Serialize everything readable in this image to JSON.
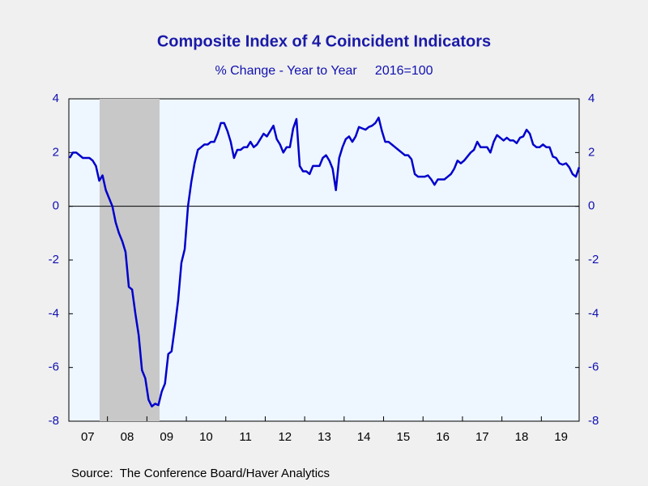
{
  "chart_data": {
    "type": "line",
    "title": "Composite Index of 4 Coincident Indicators",
    "subtitle": "% Change - Year to Year     2016=100",
    "source": "Source:  The Conference Board/Haver Analytics",
    "categories": [
      null,
      null,
      null,
      null,
      null,
      "07",
      null,
      null,
      null,
      null,
      null,
      null,
      null,
      null,
      null,
      null,
      null,
      "08",
      null,
      null,
      null,
      null,
      null,
      null,
      null,
      null,
      null,
      null,
      null,
      "09",
      null,
      null,
      null,
      null,
      null,
      null,
      null,
      null,
      null,
      null,
      null,
      "10",
      null,
      null,
      null,
      null,
      null,
      null,
      null,
      null,
      null,
      null,
      null,
      "11",
      null,
      null,
      null,
      null,
      null,
      null,
      null,
      null,
      null,
      null,
      null,
      "12",
      null,
      null,
      null,
      null,
      null,
      null,
      null,
      null,
      null,
      null,
      null,
      "13",
      null,
      null,
      null,
      null,
      null,
      null,
      null,
      null,
      null,
      null,
      null,
      "14",
      null,
      null,
      null,
      null,
      null,
      null,
      null,
      null,
      null,
      null,
      null,
      "15",
      null,
      null,
      null,
      null,
      null,
      null,
      null,
      null,
      null,
      null,
      null,
      "16",
      null,
      null,
      null,
      null,
      null,
      null,
      null,
      null,
      null,
      null,
      null,
      "17",
      null,
      null,
      null,
      null,
      null,
      null,
      null,
      null,
      null,
      null,
      null,
      "18",
      null,
      null,
      null,
      null,
      null,
      null,
      null,
      null,
      null,
      null,
      null,
      "19",
      null,
      null,
      null,
      null,
      null,
      null
    ],
    "series": [
      {
        "name": "Composite Index of 4 Coincident Indicators",
        "color": "#0000cc",
        "values": [
          1.8,
          2.0,
          2.0,
          1.9,
          1.8,
          1.8,
          1.8,
          1.7,
          1.5,
          0.95,
          1.15,
          0.6,
          0.3,
          0.0,
          -0.6,
          -1.0,
          -1.3,
          -1.7,
          -3.0,
          -3.1,
          -4.0,
          -4.8,
          -6.1,
          -6.4,
          -7.2,
          -7.45,
          -7.35,
          -7.4,
          -6.9,
          -6.6,
          -5.5,
          -5.4,
          -4.5,
          -3.5,
          -2.1,
          -1.6,
          0.0,
          0.9,
          1.6,
          2.1,
          2.2,
          2.3,
          2.3,
          2.4,
          2.4,
          2.7,
          3.1,
          3.1,
          2.8,
          2.4,
          1.8,
          2.1,
          2.1,
          2.2,
          2.2,
          2.4,
          2.2,
          2.3,
          2.5,
          2.7,
          2.6,
          2.8,
          3.0,
          2.5,
          2.3,
          2.0,
          2.2,
          2.2,
          2.9,
          3.25,
          1.5,
          1.3,
          1.3,
          1.2,
          1.5,
          1.5,
          1.5,
          1.8,
          1.9,
          1.7,
          1.4,
          0.6,
          1.8,
          2.2,
          2.5,
          2.6,
          2.4,
          2.6,
          2.95,
          2.9,
          2.85,
          2.95,
          3.0,
          3.1,
          3.3,
          2.8,
          2.4,
          2.4,
          2.3,
          2.2,
          2.1,
          2.0,
          1.9,
          1.9,
          1.75,
          1.2,
          1.1,
          1.1,
          1.1,
          1.15,
          1.0,
          0.8,
          1.0,
          1.0,
          1.0,
          1.1,
          1.2,
          1.4,
          1.7,
          1.6,
          1.7,
          1.85,
          2.0,
          2.1,
          2.4,
          2.2,
          2.2,
          2.2,
          2.0,
          2.4,
          2.65,
          2.55,
          2.45,
          2.55,
          2.45,
          2.45,
          2.35,
          2.55,
          2.6,
          2.85,
          2.7,
          2.3,
          2.2,
          2.2,
          2.3,
          2.2,
          2.2,
          1.85,
          1.8,
          1.6,
          1.55,
          1.6,
          1.45,
          1.2,
          1.1,
          1.45
        ]
      }
    ],
    "ylim": [
      -8,
      4
    ],
    "yticks": [
      -8,
      -6,
      -4,
      -2,
      0,
      2,
      4
    ],
    "y2lim": [
      -8,
      4
    ],
    "y2ticks": [
      -8,
      -6,
      -4,
      -2,
      0,
      2,
      4
    ],
    "zero_line": true
  }
}
